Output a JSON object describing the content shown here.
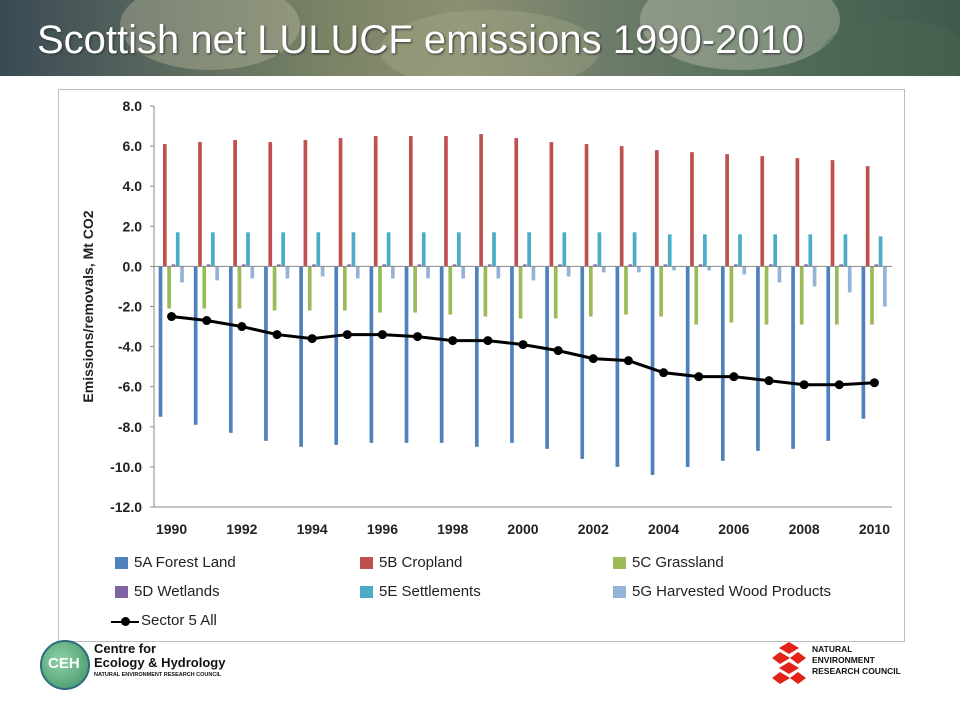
{
  "page": {
    "title": "Scottish net LULUCF emissions 1990-2010"
  },
  "logos": {
    "ceh_badge": "CEH",
    "ceh_line1": "Centre for",
    "ceh_line2": "Ecology & Hydrology",
    "ceh_sub": "NATURAL ENVIRONMENT RESEARCH COUNCIL",
    "nerc_line1": "NATURAL",
    "nerc_line2": "ENVIRONMENT",
    "nerc_line3": "RESEARCH COUNCIL"
  },
  "chart_data": {
    "type": "bar",
    "title": "",
    "ylabel": "Emissions/removals,  Mt CO2",
    "ylim": [
      -12,
      8
    ],
    "ytick_step": 2,
    "yticks": [
      "8.0",
      "6.0",
      "4.0",
      "2.0",
      "0.0",
      "-2.0",
      "-4.0",
      "-6.0",
      "-8.0",
      "-10.0",
      "-12.0"
    ],
    "categories": [
      "1990",
      "1991",
      "1992",
      "1993",
      "1994",
      "1995",
      "1996",
      "1997",
      "1998",
      "1999",
      "2000",
      "2001",
      "2002",
      "2003",
      "2004",
      "2005",
      "2006",
      "2007",
      "2008",
      "2009",
      "2010"
    ],
    "xtick_labels": [
      "1990",
      "1992",
      "1994",
      "1996",
      "1998",
      "2000",
      "2002",
      "2004",
      "2006",
      "2008",
      "2010"
    ],
    "grid": false,
    "legend_position": "bottom",
    "series": [
      {
        "name": "5A Forest Land",
        "type": "bar",
        "color": "#4f81bd",
        "values": [
          -7.5,
          -7.9,
          -8.3,
          -8.7,
          -9.0,
          -8.9,
          -8.8,
          -8.8,
          -8.8,
          -9.0,
          -8.8,
          -9.1,
          -9.6,
          -10.0,
          -10.4,
          -10.0,
          -9.7,
          -9.2,
          -9.1,
          -8.7,
          -7.6
        ]
      },
      {
        "name": "5B Cropland",
        "type": "bar",
        "color": "#c0504d",
        "values": [
          6.1,
          6.2,
          6.3,
          6.2,
          6.3,
          6.4,
          6.5,
          6.5,
          6.5,
          6.6,
          6.4,
          6.2,
          6.1,
          6.0,
          5.8,
          5.7,
          5.6,
          5.5,
          5.4,
          5.3,
          5.0
        ]
      },
      {
        "name": "5C Grassland",
        "type": "bar",
        "color": "#9bbb59",
        "values": [
          -2.1,
          -2.1,
          -2.1,
          -2.2,
          -2.2,
          -2.2,
          -2.3,
          -2.3,
          -2.4,
          -2.5,
          -2.6,
          -2.6,
          -2.5,
          -2.4,
          -2.5,
          -2.9,
          -2.8,
          -2.9,
          -2.9,
          -2.9,
          -2.9
        ]
      },
      {
        "name": "5D Wetlands",
        "type": "bar",
        "color": "#8064a2",
        "values": [
          0.1,
          0.1,
          0.1,
          0.1,
          0.1,
          0.1,
          0.1,
          0.1,
          0.1,
          0.1,
          0.1,
          0.1,
          0.1,
          0.1,
          0.1,
          0.1,
          0.1,
          0.1,
          0.1,
          0.1,
          0.1
        ]
      },
      {
        "name": "5E Settlements",
        "type": "bar",
        "color": "#4bacc6",
        "values": [
          1.7,
          1.7,
          1.7,
          1.7,
          1.7,
          1.7,
          1.7,
          1.7,
          1.7,
          1.7,
          1.7,
          1.7,
          1.7,
          1.7,
          1.6,
          1.6,
          1.6,
          1.6,
          1.6,
          1.6,
          1.5
        ]
      },
      {
        "name": "5G Harvested Wood Products",
        "type": "bar",
        "color": "#95b3d7",
        "values": [
          -0.8,
          -0.7,
          -0.6,
          -0.6,
          -0.5,
          -0.6,
          -0.6,
          -0.6,
          -0.6,
          -0.6,
          -0.7,
          -0.5,
          -0.3,
          -0.3,
          -0.2,
          -0.2,
          -0.4,
          -0.8,
          -1.0,
          -1.3,
          -2.0
        ]
      },
      {
        "name": "Sector 5 All",
        "type": "line",
        "color": "#000000",
        "values": [
          -2.5,
          -2.7,
          -3.0,
          -3.4,
          -3.6,
          -3.4,
          -3.4,
          -3.5,
          -3.7,
          -3.7,
          -3.9,
          -4.2,
          -4.6,
          -4.7,
          -5.3,
          -5.5,
          -5.5,
          -5.7,
          -5.9,
          -5.9,
          -5.8
        ]
      }
    ]
  }
}
